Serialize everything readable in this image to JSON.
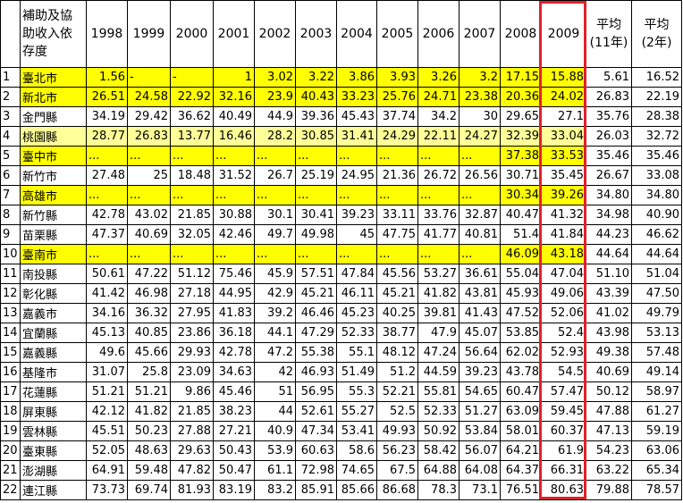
{
  "table": {
    "header": [
      "",
      "補助及協助收入依存度",
      "1998",
      "1999",
      "2000",
      "2001",
      "2002",
      "2003",
      "2004",
      "2005",
      "2006",
      "2007",
      "2008",
      "2009",
      "平均\n(11年)",
      "平均\n(2年)"
    ],
    "rows": [
      {
        "fill": "#ffff00",
        "cells": [
          "1",
          "臺北市",
          "1.56",
          "-",
          "-",
          "1",
          "3.02",
          "3.22",
          "3.86",
          "3.93",
          "3.26",
          "3.2",
          "17.15",
          "15.88",
          "5.61",
          "16.52"
        ]
      },
      {
        "fill": "#ffff00",
        "cells": [
          "2",
          "新北市",
          "26.51",
          "24.58",
          "22.92",
          "32.16",
          "23.9",
          "40.43",
          "33.23",
          "25.76",
          "24.71",
          "23.38",
          "20.36",
          "24.02",
          "26.83",
          "22.19"
        ]
      },
      {
        "cells": [
          "3",
          "金門縣",
          "34.19",
          "29.42",
          "36.62",
          "40.49",
          "44.9",
          "39.36",
          "45.43",
          "37.74",
          "34.2",
          "30",
          "29.65",
          "27.1",
          "35.76",
          "28.38"
        ]
      },
      {
        "fill": "#ffff99",
        "cells": [
          "4",
          "桃園縣",
          "28.77",
          "26.83",
          "13.77",
          "16.46",
          "28.2",
          "30.85",
          "31.41",
          "24.29",
          "22.11",
          "24.27",
          "32.39",
          "33.04",
          "26.03",
          "32.72"
        ]
      },
      {
        "fill": "#ffff00",
        "cells": [
          "5",
          "臺中市",
          "...",
          "...",
          "...",
          "...",
          "...",
          "...",
          "...",
          "...",
          "...",
          "...",
          "37.38",
          "33.53",
          "35.46",
          "35.46"
        ]
      },
      {
        "cells": [
          "6",
          "新竹市",
          "27.48",
          "25",
          "18.48",
          "31.52",
          "26.7",
          "25.19",
          "24.95",
          "21.36",
          "26.72",
          "26.56",
          "30.71",
          "35.45",
          "26.67",
          "33.08"
        ]
      },
      {
        "fill": "#ffff00",
        "cells": [
          "7",
          "高雄市",
          "...",
          "...",
          "...",
          "...",
          "...",
          "...",
          "...",
          "...",
          "...",
          "...",
          "30.34",
          "39.26",
          "34.80",
          "34.80"
        ]
      },
      {
        "cells": [
          "8",
          "新竹縣",
          "42.78",
          "43.02",
          "21.85",
          "30.88",
          "30.1",
          "30.41",
          "39.23",
          "33.11",
          "33.76",
          "32.87",
          "40.47",
          "41.32",
          "34.98",
          "40.90"
        ]
      },
      {
        "cells": [
          "9",
          "苗栗縣",
          "47.37",
          "40.69",
          "32.05",
          "42.46",
          "49.7",
          "49.98",
          "45",
          "47.75",
          "41.77",
          "40.81",
          "51.4",
          "41.84",
          "44.23",
          "46.62"
        ]
      },
      {
        "fill": "#ffff00",
        "cells": [
          "10",
          "臺南市",
          "...",
          "...",
          "...",
          "...",
          "...",
          "...",
          "...",
          "...",
          "...",
          "...",
          "46.09",
          "43.18",
          "44.64",
          "44.64"
        ]
      },
      {
        "cells": [
          "11",
          "南投縣",
          "50.61",
          "47.22",
          "51.12",
          "75.46",
          "45.9",
          "57.51",
          "47.84",
          "45.56",
          "53.27",
          "36.61",
          "55.04",
          "47.04",
          "51.10",
          "51.04"
        ]
      },
      {
        "cells": [
          "12",
          "彰化縣",
          "41.42",
          "46.98",
          "27.18",
          "44.95",
          "42.9",
          "45.21",
          "46.11",
          "45.21",
          "41.82",
          "43.81",
          "45.93",
          "49.06",
          "43.39",
          "47.50"
        ]
      },
      {
        "cells": [
          "13",
          "嘉義市",
          "34.16",
          "36.32",
          "27.95",
          "41.83",
          "39.2",
          "46.46",
          "45.23",
          "40.25",
          "39.81",
          "41.43",
          "47.52",
          "52.06",
          "41.02",
          "49.79"
        ]
      },
      {
        "cells": [
          "14",
          "宜蘭縣",
          "45.13",
          "40.85",
          "23.86",
          "36.18",
          "44.1",
          "47.29",
          "52.33",
          "38.77",
          "47.9",
          "45.07",
          "53.85",
          "52.4",
          "43.98",
          "53.13"
        ]
      },
      {
        "cells": [
          "15",
          "嘉義縣",
          "49.6",
          "45.66",
          "29.93",
          "42.78",
          "47.2",
          "55.38",
          "55.1",
          "48.12",
          "47.24",
          "56.64",
          "62.02",
          "52.93",
          "49.38",
          "57.48"
        ]
      },
      {
        "cells": [
          "16",
          "基隆市",
          "31.07",
          "25.8",
          "23.09",
          "34.63",
          "42",
          "46.93",
          "51.49",
          "51.2",
          "44.59",
          "39.23",
          "43.78",
          "54.5",
          "40.69",
          "49.14"
        ]
      },
      {
        "cells": [
          "17",
          "花蓮縣",
          "51.21",
          "51.21",
          "9.86",
          "45.46",
          "51",
          "56.95",
          "55.3",
          "52.21",
          "55.81",
          "54.65",
          "60.47",
          "57.47",
          "50.12",
          "58.97"
        ]
      },
      {
        "cells": [
          "18",
          "屏東縣",
          "42.12",
          "41.82",
          "21.85",
          "38.23",
          "44",
          "52.61",
          "55.27",
          "52.5",
          "52.33",
          "51.27",
          "63.09",
          "59.45",
          "47.88",
          "61.27"
        ]
      },
      {
        "cells": [
          "19",
          "雲林縣",
          "45.51",
          "50.23",
          "27.88",
          "27.21",
          "40.9",
          "47.34",
          "53.41",
          "49.93",
          "50.92",
          "53.84",
          "58.01",
          "60.37",
          "47.13",
          "59.19"
        ]
      },
      {
        "cells": [
          "20",
          "臺東縣",
          "52.05",
          "48.63",
          "29.63",
          "50.43",
          "53.9",
          "60.63",
          "58.6",
          "56.23",
          "58.42",
          "56.07",
          "64.21",
          "61.9",
          "54.23",
          "63.06"
        ]
      },
      {
        "cells": [
          "21",
          "澎湖縣",
          "64.91",
          "59.48",
          "47.82",
          "50.47",
          "61.1",
          "72.98",
          "74.65",
          "67.5",
          "64.88",
          "64.08",
          "64.37",
          "66.31",
          "63.22",
          "65.34"
        ]
      },
      {
        "cells": [
          "22",
          "連江縣",
          "73.73",
          "69.74",
          "81.93",
          "83.19",
          "83.2",
          "85.91",
          "85.66",
          "86.68",
          "78.3",
          "73.1",
          "76.51",
          "80.63",
          "79.88",
          "78.57"
        ]
      }
    ]
  }
}
